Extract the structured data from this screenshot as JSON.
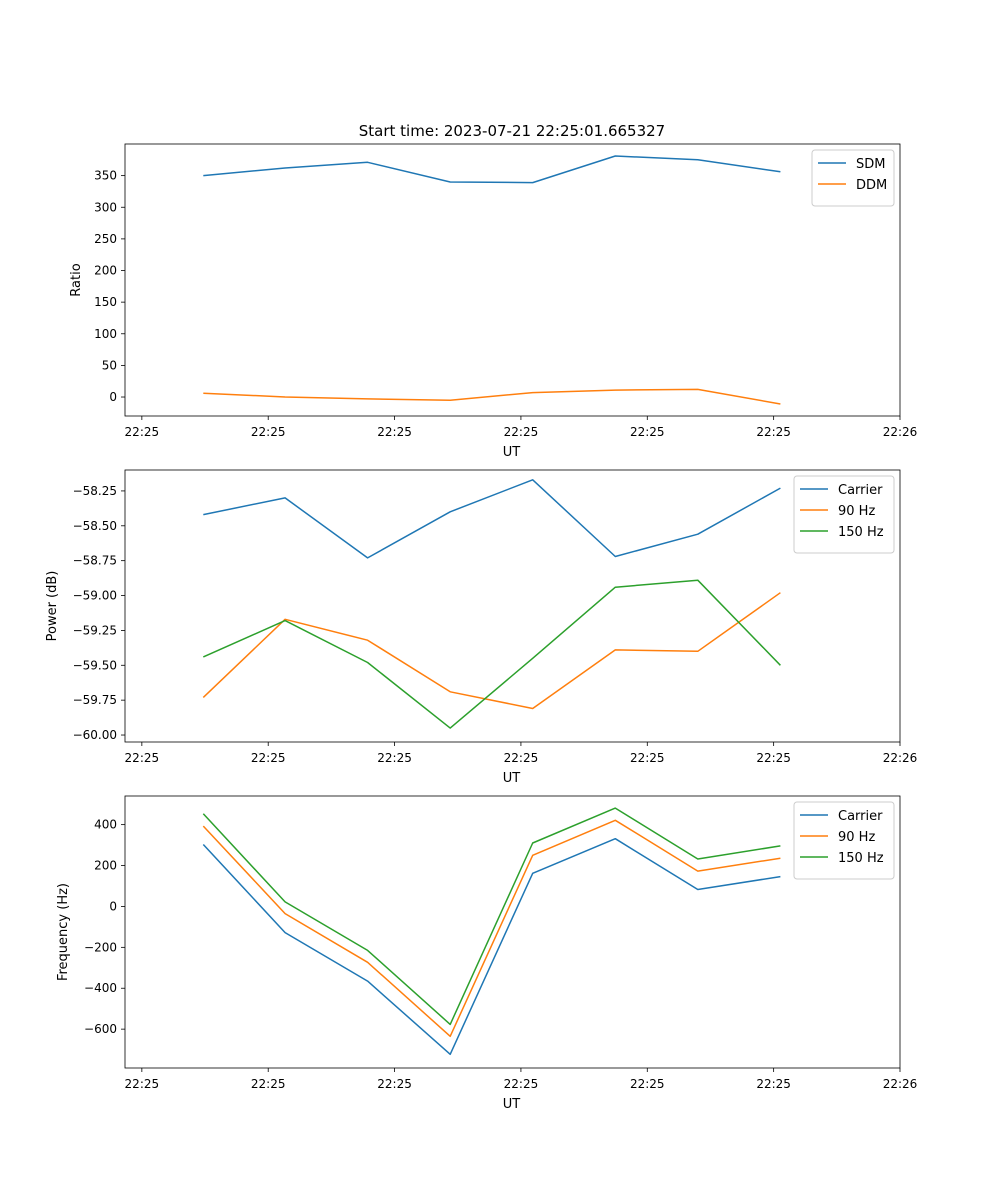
{
  "figure_title": "Start time: 2023-07-21 22:25:01.665327",
  "colors": {
    "series": [
      "#1f77b4",
      "#ff7f0e",
      "#2ca02c"
    ],
    "axis": "#000000",
    "legend_border": "#cccccc"
  },
  "chart_data": [
    {
      "type": "line",
      "xlabel": "UT",
      "ylabel": "Ratio",
      "xlim": [
        0,
        9.2
      ],
      "ylim": [
        -30,
        400
      ],
      "x_ticks": [
        0.2,
        1.7,
        3.2,
        4.7,
        6.2,
        7.7,
        9.2
      ],
      "x_tick_labels": [
        "22:25",
        "22:25",
        "22:25",
        "22:25",
        "22:25",
        "22:25",
        "22:26"
      ],
      "y_ticks": [
        0,
        50,
        100,
        150,
        200,
        250,
        300,
        350
      ],
      "y_tick_labels": [
        "0",
        "50",
        "100",
        "150",
        "200",
        "250",
        "300",
        "350"
      ],
      "x": [
        0.93,
        1.9,
        2.88,
        3.86,
        4.84,
        5.82,
        6.8,
        7.78
      ],
      "series": [
        {
          "name": "SDM",
          "values": [
            350,
            362,
            371,
            340,
            339,
            381,
            375,
            356
          ]
        },
        {
          "name": "DDM",
          "values": [
            6,
            0,
            -3,
            -5,
            7,
            11,
            12,
            -11
          ]
        }
      ],
      "legend_position": "top-right"
    },
    {
      "type": "line",
      "xlabel": "UT",
      "ylabel": "Power (dB)",
      "xlim": [
        0,
        9.2
      ],
      "ylim": [
        -60.05,
        -58.1
      ],
      "x_ticks": [
        0.2,
        1.7,
        3.2,
        4.7,
        6.2,
        7.7,
        9.2
      ],
      "x_tick_labels": [
        "22:25",
        "22:25",
        "22:25",
        "22:25",
        "22:25",
        "22:25",
        "22:26"
      ],
      "y_ticks": [
        -60.0,
        -59.75,
        -59.5,
        -59.25,
        -59.0,
        -58.75,
        -58.5,
        -58.25
      ],
      "y_tick_labels": [
        "−60.00",
        "−59.75",
        "−59.50",
        "−59.25",
        "−59.00",
        "−58.75",
        "−58.50",
        "−58.25"
      ],
      "x": [
        0.93,
        1.9,
        2.88,
        3.86,
        4.84,
        5.82,
        6.8,
        7.78
      ],
      "series": [
        {
          "name": "Carrier",
          "values": [
            -58.42,
            -58.3,
            -58.73,
            -58.4,
            -58.17,
            -58.72,
            -58.56,
            -58.23
          ]
        },
        {
          "name": "90 Hz",
          "values": [
            -59.73,
            -59.17,
            -59.32,
            -59.69,
            -59.81,
            -59.39,
            -59.4,
            -58.98
          ]
        },
        {
          "name": "150 Hz",
          "values": [
            -59.44,
            -59.18,
            -59.48,
            -59.95,
            -59.45,
            -58.94,
            -58.89,
            -59.5
          ]
        }
      ],
      "legend_position": "top-right"
    },
    {
      "type": "line",
      "xlabel": "UT",
      "ylabel": "Frequency (Hz)",
      "xlim": [
        0,
        9.2
      ],
      "ylim": [
        -790,
        540
      ],
      "x_ticks": [
        0.2,
        1.7,
        3.2,
        4.7,
        6.2,
        7.7,
        9.2
      ],
      "x_tick_labels": [
        "22:25",
        "22:25",
        "22:25",
        "22:25",
        "22:25",
        "22:25",
        "22:26"
      ],
      "y_ticks": [
        -600,
        -400,
        -200,
        0,
        200,
        400
      ],
      "y_tick_labels": [
        "−600",
        "−400",
        "−200",
        "0",
        "200",
        "400"
      ],
      "x": [
        0.93,
        1.9,
        2.88,
        3.86,
        4.84,
        5.82,
        6.8,
        7.78
      ],
      "series": [
        {
          "name": "Carrier",
          "values": [
            303,
            -128,
            -365,
            -723,
            162,
            331,
            83,
            146
          ]
        },
        {
          "name": "90 Hz",
          "values": [
            393,
            -35,
            -273,
            -635,
            250,
            421,
            173,
            236
          ]
        },
        {
          "name": "150 Hz",
          "values": [
            453,
            22,
            -215,
            -577,
            310,
            481,
            232,
            296
          ]
        }
      ],
      "legend_position": "top-right"
    }
  ]
}
